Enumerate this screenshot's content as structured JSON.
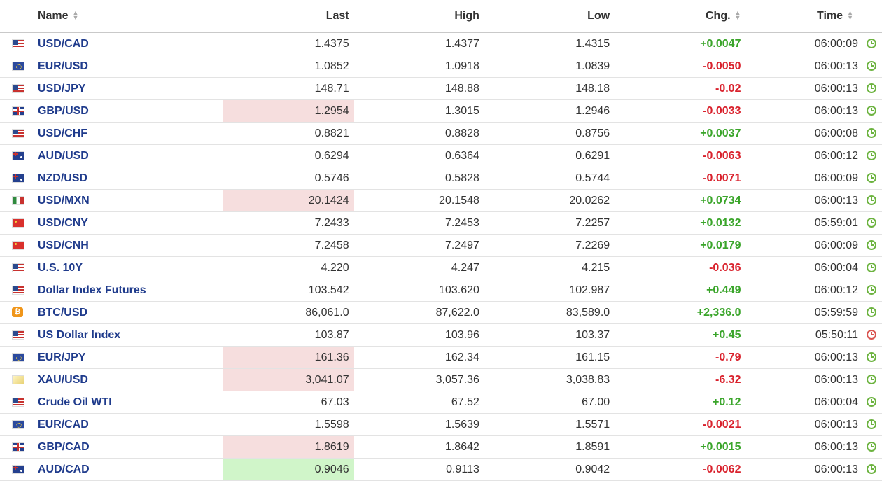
{
  "headers": {
    "name": "Name",
    "last": "Last",
    "high": "High",
    "low": "Low",
    "chg": "Chg.",
    "time": "Time"
  },
  "sort_icon": "⬍",
  "rows": [
    {
      "flag": "us-flag-icon",
      "name": "USD/CAD",
      "last": "1.4375",
      "high": "1.4377",
      "low": "1.4315",
      "chg": "+0.0047",
      "dir": "pos",
      "time": "06:00:09",
      "clock": "green",
      "hl": ""
    },
    {
      "flag": "eu-flag-icon",
      "name": "EUR/USD",
      "last": "1.0852",
      "high": "1.0918",
      "low": "1.0839",
      "chg": "-0.0050",
      "dir": "neg",
      "time": "06:00:13",
      "clock": "green",
      "hl": ""
    },
    {
      "flag": "us-flag-icon",
      "name": "USD/JPY",
      "last": "148.71",
      "high": "148.88",
      "low": "148.18",
      "chg": "-0.02",
      "dir": "neg",
      "time": "06:00:13",
      "clock": "green",
      "hl": ""
    },
    {
      "flag": "gb-flag-icon",
      "name": "GBP/USD",
      "last": "1.2954",
      "high": "1.3015",
      "low": "1.2946",
      "chg": "-0.0033",
      "dir": "neg",
      "time": "06:00:13",
      "clock": "green",
      "hl": "red"
    },
    {
      "flag": "us-flag-icon",
      "name": "USD/CHF",
      "last": "0.8821",
      "high": "0.8828",
      "low": "0.8756",
      "chg": "+0.0037",
      "dir": "pos",
      "time": "06:00:08",
      "clock": "green",
      "hl": ""
    },
    {
      "flag": "au-flag-icon",
      "name": "AUD/USD",
      "last": "0.6294",
      "high": "0.6364",
      "low": "0.6291",
      "chg": "-0.0063",
      "dir": "neg",
      "time": "06:00:12",
      "clock": "green",
      "hl": ""
    },
    {
      "flag": "au-flag-icon",
      "name": "NZD/USD",
      "last": "0.5746",
      "high": "0.5828",
      "low": "0.5744",
      "chg": "-0.0071",
      "dir": "neg",
      "time": "06:00:09",
      "clock": "green",
      "hl": ""
    },
    {
      "flag": "mx-flag-icon",
      "name": "USD/MXN",
      "last": "20.1424",
      "high": "20.1548",
      "low": "20.0262",
      "chg": "+0.0734",
      "dir": "pos",
      "time": "06:00:13",
      "clock": "green",
      "hl": "red"
    },
    {
      "flag": "cn-flag-icon",
      "name": "USD/CNY",
      "last": "7.2433",
      "high": "7.2453",
      "low": "7.2257",
      "chg": "+0.0132",
      "dir": "pos",
      "time": "05:59:01",
      "clock": "green",
      "hl": ""
    },
    {
      "flag": "cn-flag-icon",
      "name": "USD/CNH",
      "last": "7.2458",
      "high": "7.2497",
      "low": "7.2269",
      "chg": "+0.0179",
      "dir": "pos",
      "time": "06:00:09",
      "clock": "green",
      "hl": ""
    },
    {
      "flag": "us-flag-icon",
      "name": "U.S. 10Y",
      "last": "4.220",
      "high": "4.247",
      "low": "4.215",
      "chg": "-0.036",
      "dir": "neg",
      "time": "06:00:04",
      "clock": "green",
      "hl": ""
    },
    {
      "flag": "us-flag-icon",
      "name": "Dollar Index Futures",
      "last": "103.542",
      "high": "103.620",
      "low": "102.987",
      "chg": "+0.449",
      "dir": "pos",
      "time": "06:00:12",
      "clock": "green",
      "hl": ""
    },
    {
      "flag": "btc-icon",
      "name": "BTC/USD",
      "last": "86,061.0",
      "high": "87,622.0",
      "low": "83,589.0",
      "chg": "+2,336.0",
      "dir": "pos",
      "time": "05:59:59",
      "clock": "green",
      "hl": ""
    },
    {
      "flag": "us-flag-icon",
      "name": "US Dollar Index",
      "last": "103.87",
      "high": "103.96",
      "low": "103.37",
      "chg": "+0.45",
      "dir": "pos",
      "time": "05:50:11",
      "clock": "red",
      "hl": ""
    },
    {
      "flag": "eu-flag-icon",
      "name": "EUR/JPY",
      "last": "161.36",
      "high": "162.34",
      "low": "161.15",
      "chg": "-0.79",
      "dir": "neg",
      "time": "06:00:13",
      "clock": "green",
      "hl": "red"
    },
    {
      "flag": "gold-icon",
      "name": "XAU/USD",
      "last": "3,041.07",
      "high": "3,057.36",
      "low": "3,038.83",
      "chg": "-6.32",
      "dir": "neg",
      "time": "06:00:13",
      "clock": "green",
      "hl": "red"
    },
    {
      "flag": "us-flag-icon",
      "name": "Crude Oil WTI",
      "last": "67.03",
      "high": "67.52",
      "low": "67.00",
      "chg": "+0.12",
      "dir": "pos",
      "time": "06:00:04",
      "clock": "green",
      "hl": ""
    },
    {
      "flag": "eu-flag-icon",
      "name": "EUR/CAD",
      "last": "1.5598",
      "high": "1.5639",
      "low": "1.5571",
      "chg": "-0.0021",
      "dir": "neg",
      "time": "06:00:13",
      "clock": "green",
      "hl": ""
    },
    {
      "flag": "gb-flag-icon",
      "name": "GBP/CAD",
      "last": "1.8619",
      "high": "1.8642",
      "low": "1.8591",
      "chg": "+0.0015",
      "dir": "pos",
      "time": "06:00:13",
      "clock": "green",
      "hl": "red"
    },
    {
      "flag": "au-flag-icon",
      "name": "AUD/CAD",
      "last": "0.9046",
      "high": "0.9113",
      "low": "0.9042",
      "chg": "-0.0062",
      "dir": "neg",
      "time": "06:00:13",
      "clock": "green",
      "hl": "green"
    }
  ],
  "colors": {
    "positive": "#3aa52a",
    "negative": "#d9212c",
    "name_link": "#1f3b8c",
    "highlight_down": "#f6dede",
    "highlight_up": "#d0f5c9"
  }
}
